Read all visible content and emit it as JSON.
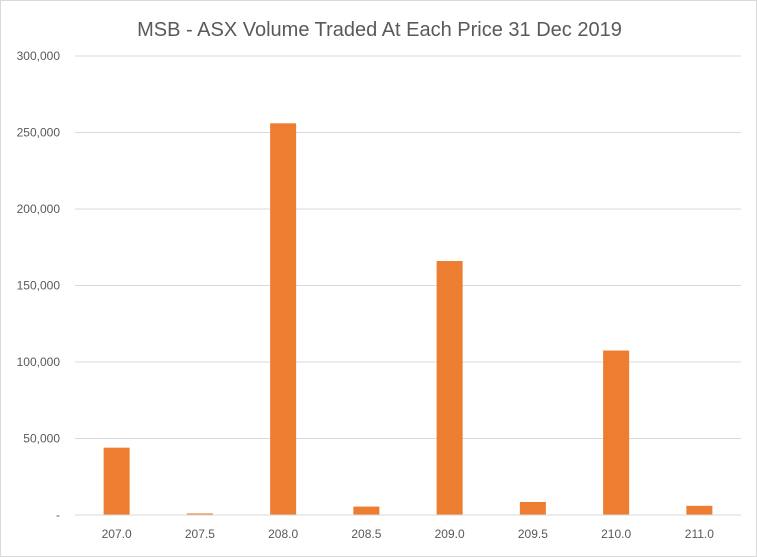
{
  "chart_data": {
    "type": "bar",
    "title": "MSB - ASX Volume Traded At Each Price 31 Dec 2019",
    "xlabel": "",
    "ylabel": "",
    "categories": [
      "207.0",
      "207.5",
      "208.0",
      "208.5",
      "209.0",
      "209.5",
      "210.0",
      "211.0"
    ],
    "values": [
      44000,
      1000,
      256000,
      5500,
      166000,
      8500,
      107500,
      6000
    ],
    "ylim": [
      0,
      300000
    ],
    "yticks": [
      0,
      50000,
      100000,
      150000,
      200000,
      250000,
      300000
    ],
    "ytick_labels": [
      "-",
      "50,000",
      "100,000",
      "150,000",
      "200,000",
      "250,000",
      "300,000"
    ],
    "grid": true,
    "legend": "none",
    "bar_color": "#ED7D31",
    "grid_color": "#D9D9D9"
  }
}
